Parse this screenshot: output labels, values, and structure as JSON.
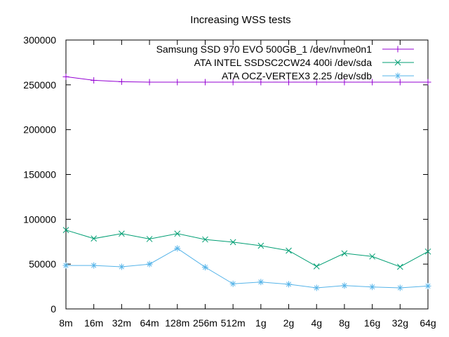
{
  "chart_data": {
    "type": "line",
    "title": "Increasing WSS tests",
    "xlabel": "",
    "ylabel": "",
    "categories": [
      "8m",
      "16m",
      "32m",
      "64m",
      "128m",
      "256m",
      "512m",
      "1g",
      "2g",
      "4g",
      "8g",
      "16g",
      "32g",
      "64g"
    ],
    "ylim": [
      0,
      300000
    ],
    "yticks": [
      0,
      50000,
      100000,
      150000,
      200000,
      250000,
      300000
    ],
    "grid": false,
    "legend_position": "top-right",
    "series": [
      {
        "name": "Samsung SSD 970 EVO 500GB_1 /dev/nvme0n1",
        "color": "#9400d3",
        "marker": "plus",
        "values": [
          259000,
          255000,
          253500,
          253000,
          253000,
          253000,
          253000,
          253000,
          253000,
          253000,
          253000,
          253000,
          253000,
          253000
        ]
      },
      {
        "name": "ATA INTEL SSDSC2CW24 400i /dev/sda",
        "color": "#009e73",
        "marker": "cross",
        "values": [
          88000,
          78500,
          84000,
          78000,
          84000,
          77500,
          74500,
          70500,
          65000,
          47500,
          62000,
          58500,
          47000,
          64000
        ]
      },
      {
        "name": "ATA OCZ-VERTEX3 2.25 /dev/sdb",
        "color": "#56b4e9",
        "marker": "star",
        "values": [
          48500,
          48500,
          47000,
          50000,
          67500,
          46500,
          28000,
          30000,
          27500,
          23500,
          26000,
          24500,
          23500,
          25500
        ]
      }
    ]
  }
}
